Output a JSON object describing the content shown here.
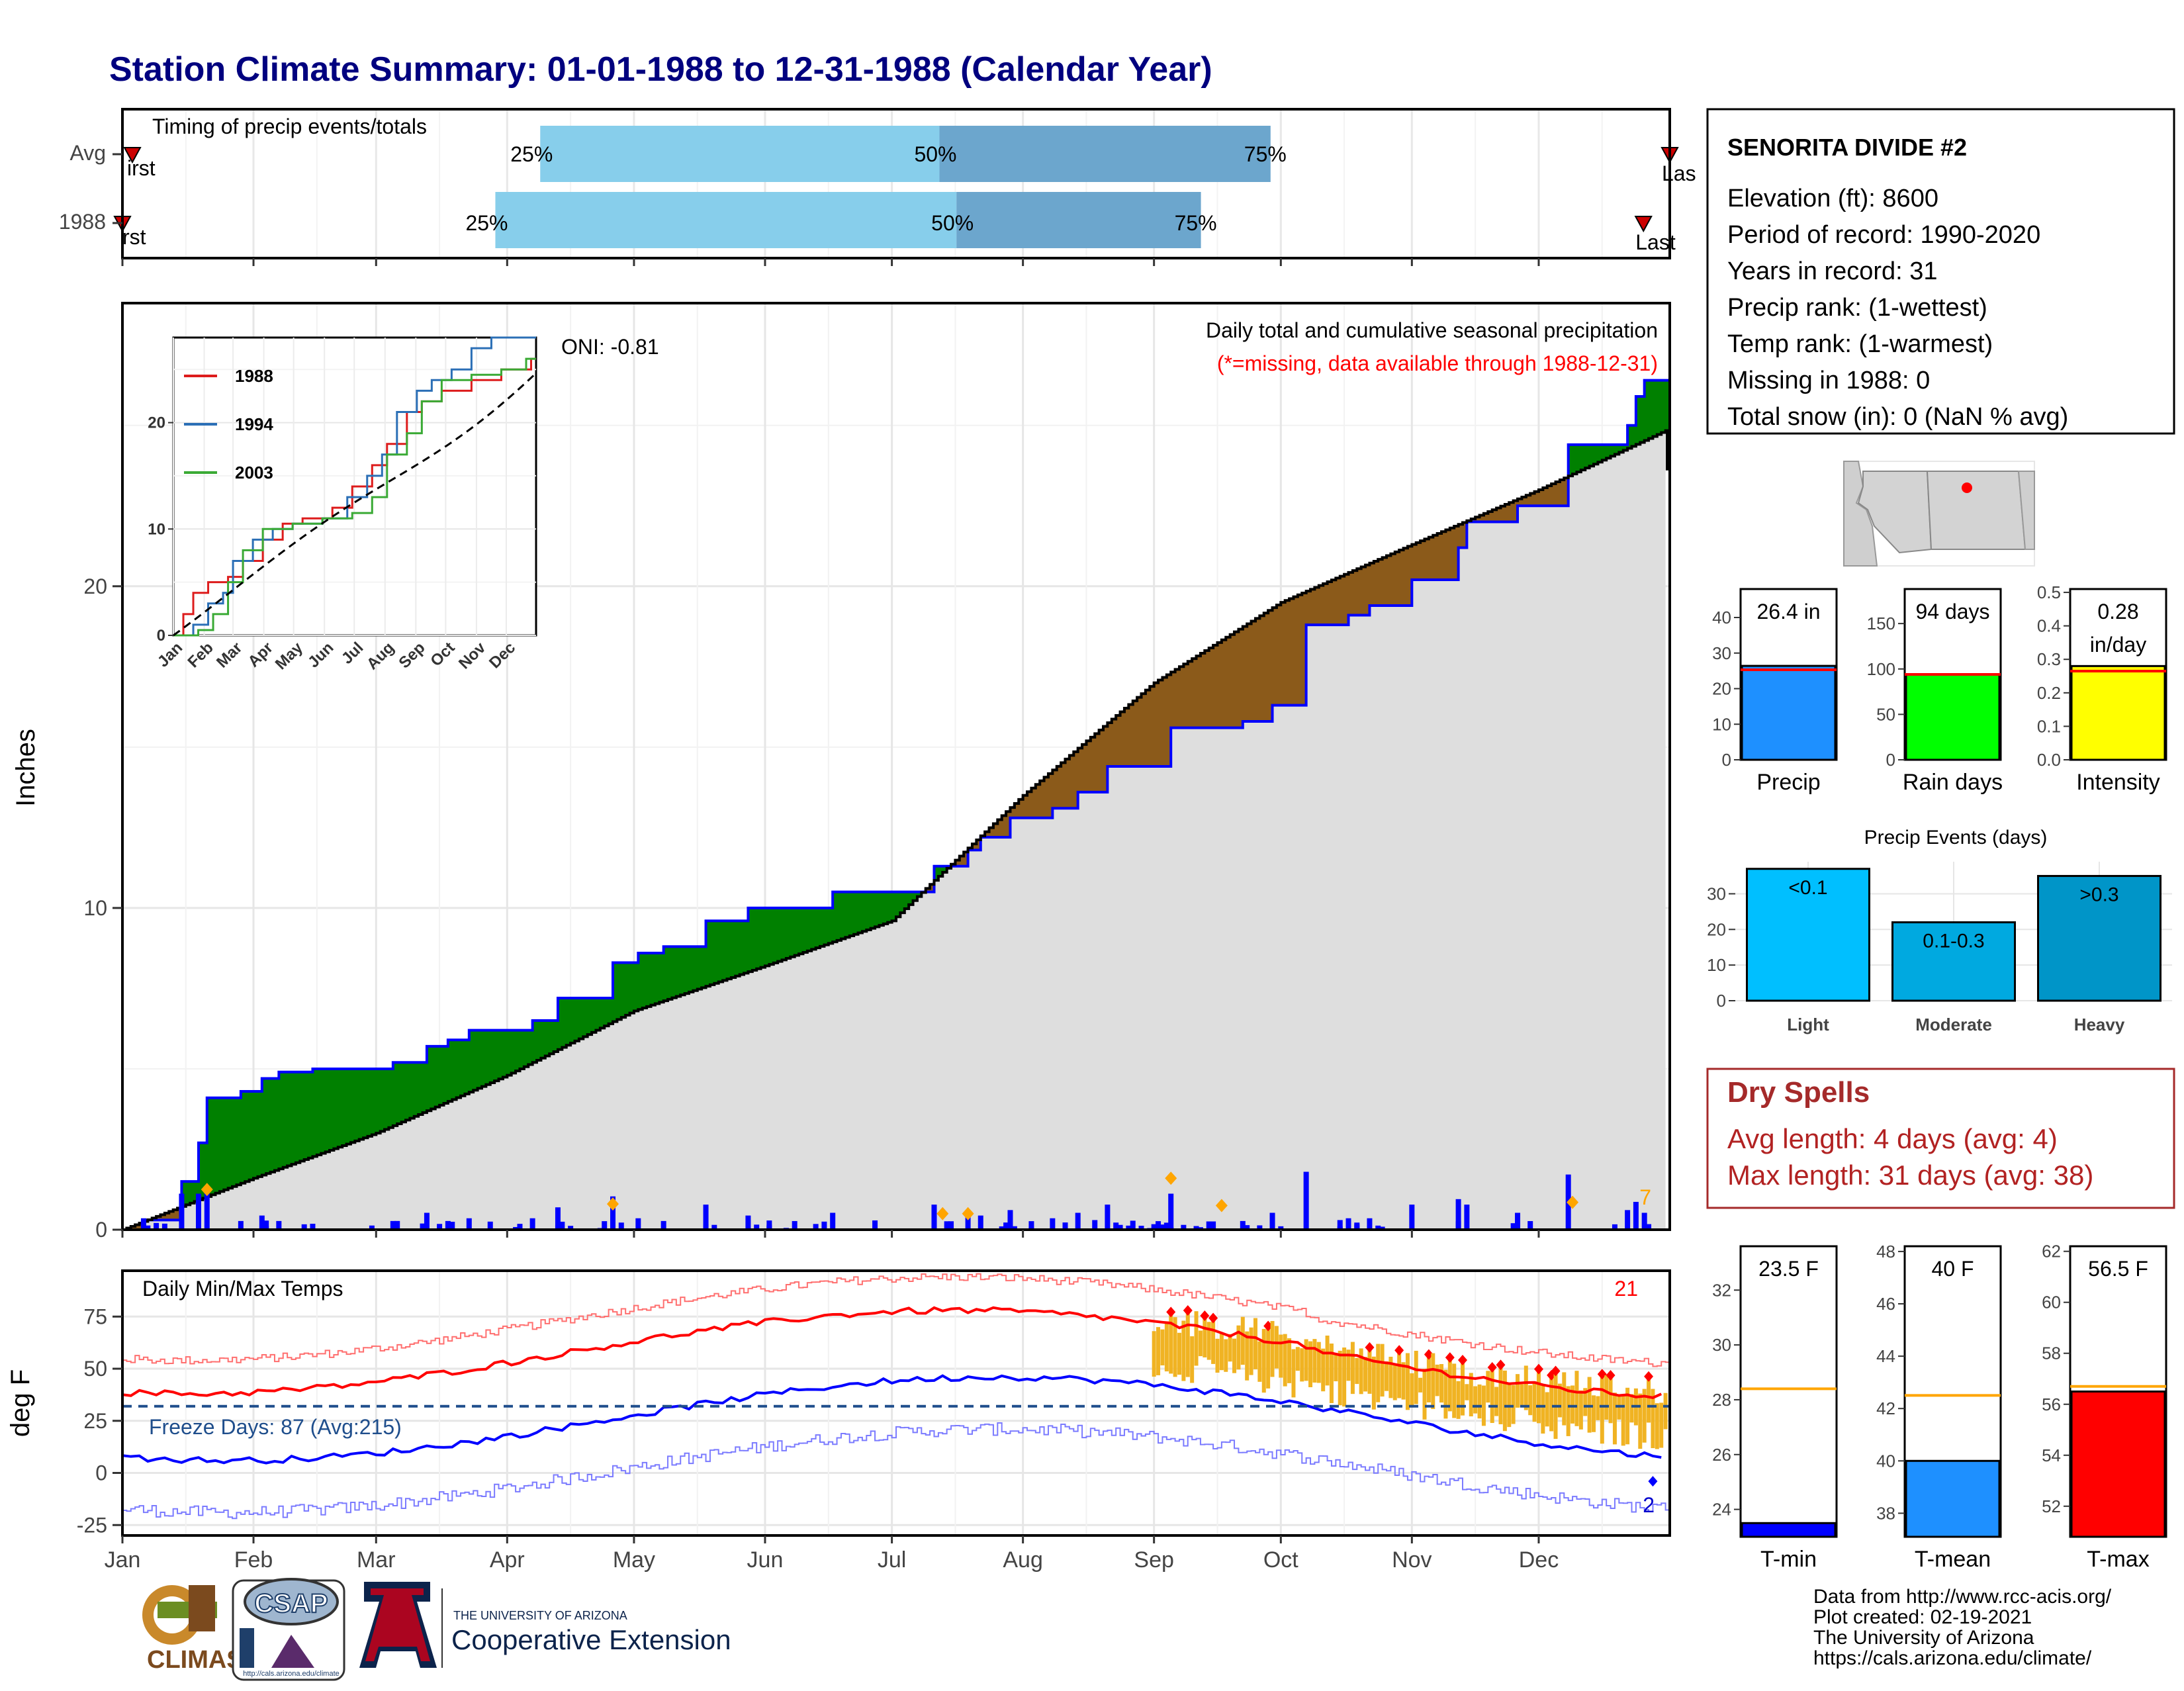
{
  "title": "Station Climate Summary: 01-01-1988 to 12-31-1988 (Calendar Year)",
  "timing": {
    "title": "Timing of precip events/totals",
    "rows": [
      {
        "label": "Avg",
        "first_frac": 0.0,
        "p25": 0.27,
        "p50": 0.528,
        "p75": 0.742,
        "last_frac": 1.0,
        "first_label": "irst",
        "last_label": "Las"
      },
      {
        "label": "1988",
        "first_frac": 0.0,
        "p25": 0.241,
        "p50": 0.539,
        "p75": 0.697,
        "last_frac": 0.983,
        "first_label": "rst",
        "last_label": "Last"
      }
    ],
    "pct_labels": [
      "25%",
      "50%",
      "75%"
    ],
    "colors": {
      "light": "#87ceeb",
      "dark": "#6ca6cd",
      "marker": "#cc0000"
    }
  },
  "precip": {
    "ylabel": "Inches",
    "oni": "ONI: -0.81",
    "subtitle": "Daily total and cumulative seasonal precipitation",
    "missing_note": "(*=missing, data available through 1988-12-31)",
    "yticks": [
      0,
      10,
      20
    ],
    "ylim": [
      0,
      28.8
    ],
    "corner_count": "7"
  },
  "inset": {
    "legend": [
      "1988",
      "1994",
      "2003"
    ],
    "colors": [
      "#dd1c1c",
      "#2b6fb6",
      "#3aaa35"
    ],
    "yticks": [
      0,
      10,
      20
    ],
    "ylim": [
      0,
      28
    ],
    "months": [
      "Jan",
      "Feb",
      "Mar",
      "Apr",
      "May",
      "Jun",
      "Jul",
      "Aug",
      "Sep",
      "Oct",
      "Nov",
      "Dec"
    ]
  },
  "temp": {
    "ylabel": "deg F",
    "title": "Daily Min/Max Temps",
    "count_top": "21",
    "count_bottom": "2",
    "freeze": "Freeze Days: 87 (Avg:215)",
    "yticks": [
      -25,
      0,
      25,
      50,
      75
    ],
    "ylim": [
      -30,
      97
    ],
    "freeze_line": 32
  },
  "months": [
    "Jan",
    "Feb",
    "Mar",
    "Apr",
    "May",
    "Jun",
    "Jul",
    "Aug",
    "Sep",
    "Oct",
    "Nov",
    "Dec"
  ],
  "station": {
    "name": "SENORITA DIVIDE #2",
    "lines": [
      "Elevation (ft): 8600",
      "Period of record: 1990-2020",
      "Years in record: 31",
      "Precip rank:  (1-wettest)",
      "Temp rank:  (1-warmest)",
      "Missing in 1988: 0",
      "Total snow (in): 0 (NaN % avg)"
    ]
  },
  "bars3": [
    {
      "xlabel": "Precip",
      "value_label": "26.4 in",
      "value": 26.4,
      "avg": 25.3,
      "ymax": 48,
      "yticks": [
        0,
        10,
        20,
        30,
        40
      ],
      "color": "#1e90ff"
    },
    {
      "xlabel": "Rain days",
      "value_label": "94 days",
      "value": 94,
      "avg": 94,
      "ymax": 188,
      "yticks": [
        0,
        50,
        100,
        150
      ],
      "color": "#00ff00"
    },
    {
      "xlabel": "Intensity",
      "value_label": "0.28",
      "value_label2": "in/day",
      "value": 0.28,
      "avg": 0.265,
      "ymax": 0.51,
      "yticks": [
        0.0,
        0.1,
        0.2,
        0.3,
        0.4,
        0.5
      ],
      "color": "#ffff00"
    }
  ],
  "events": {
    "title": "Precip Events (days)",
    "categories": [
      "Light",
      "Moderate",
      "Heavy"
    ],
    "labels": [
      "<0.1",
      "0.1-0.3",
      ">0.3"
    ],
    "values": [
      37,
      22,
      35
    ],
    "ymax": 39,
    "yticks": [
      0,
      10,
      20,
      30
    ],
    "colors": [
      "#00bfff",
      "#00a9e0",
      "#0095c8"
    ]
  },
  "dry": {
    "title": "Dry Spells",
    "avg": "Avg length: 4 days (avg: 4)",
    "max": "Max length: 31 days (avg: 38)"
  },
  "tbars": [
    {
      "xlabel": "T-min",
      "value_label": "23.5 F",
      "value": 23.5,
      "avg": 28.4,
      "ymin": 23.0,
      "ymax": 33.6,
      "yticks": [
        24,
        26,
        28,
        30,
        32
      ],
      "color": "#0000ff"
    },
    {
      "xlabel": "T-mean",
      "value_label": "40 F",
      "value": 40.0,
      "avg": 42.5,
      "ymin": 37.1,
      "ymax": 48.2,
      "yticks": [
        38,
        40,
        42,
        44,
        46,
        48
      ],
      "color": "#1e90ff"
    },
    {
      "xlabel": "T-max",
      "value_label": "56.5 F",
      "value": 56.5,
      "avg": 56.7,
      "ymin": 50.8,
      "ymax": 62.2,
      "yticks": [
        52,
        54,
        56,
        58,
        60,
        62
      ],
      "color": "#ff0000"
    }
  ],
  "footer": {
    "lines": [
      "Data from http://www.rcc-acis.org/",
      "Plot created: 02-19-2021",
      "The University of Arizona",
      "https://cals.arizona.edu/climate/"
    ],
    "logo1": "CLIMAS",
    "logo2": "CSAP",
    "logo2_url": "http://cals.arizona.edu/climate",
    "ua_small": "THE UNIVERSITY OF ARIZONA",
    "ua_big": "Cooperative Extension"
  }
}
